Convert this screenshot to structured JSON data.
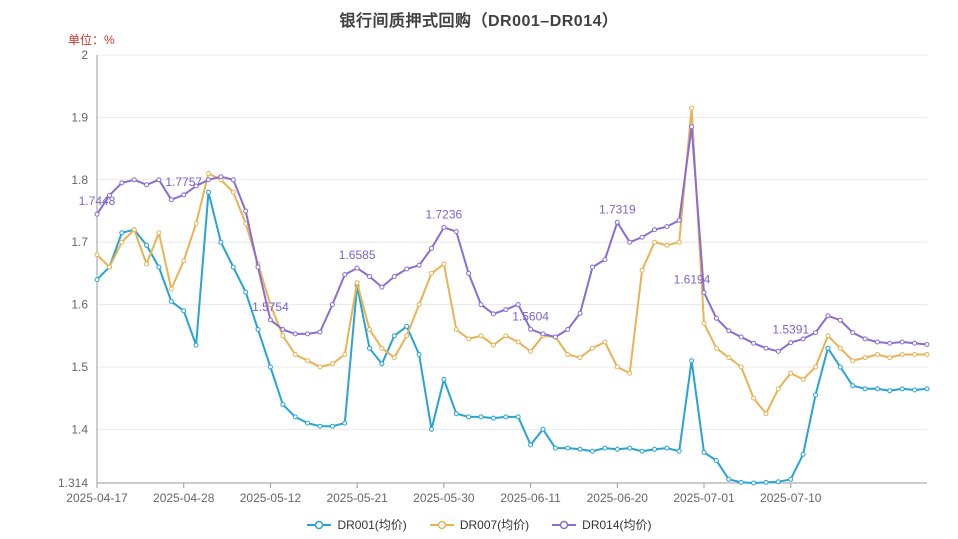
{
  "title": "银行间质押式回购（DR001–DR014）",
  "unit_label": "单位：%",
  "colors": {
    "grid": "#e8e8e8",
    "axis": "#999999",
    "tick_text": "#666666",
    "title_text": "#404040",
    "unit_text": "#c5372e",
    "legend_text": "#333333",
    "background": "#ffffff"
  },
  "chart_data": {
    "type": "line",
    "title": "银行间质押式回购（DR001–DR014）",
    "ylabel": "单位：%",
    "ylim": [
      1.314,
      2
    ],
    "grid": true,
    "legend_position": "bottom",
    "x": [
      "2025-04-17",
      "2025-04-18",
      "2025-04-21",
      "2025-04-22",
      "2025-04-23",
      "2025-04-24",
      "2025-04-25",
      "2025-04-28",
      "2025-04-29",
      "2025-04-30",
      "2025-05-06",
      "2025-05-07",
      "2025-05-08",
      "2025-05-09",
      "2025-05-12",
      "2025-05-13",
      "2025-05-14",
      "2025-05-15",
      "2025-05-16",
      "2025-05-19",
      "2025-05-20",
      "2025-05-21",
      "2025-05-22",
      "2025-05-23",
      "2025-05-26",
      "2025-05-27",
      "2025-05-28",
      "2025-05-29",
      "2025-05-30",
      "2025-06-03",
      "2025-06-04",
      "2025-06-05",
      "2025-06-06",
      "2025-06-09",
      "2025-06-10",
      "2025-06-11",
      "2025-06-12",
      "2025-06-13",
      "2025-06-16",
      "2025-06-17",
      "2025-06-18",
      "2025-06-19",
      "2025-06-20",
      "2025-06-23",
      "2025-06-24",
      "2025-06-25",
      "2025-06-26",
      "2025-06-27",
      "2025-06-30",
      "2025-07-01",
      "2025-07-02",
      "2025-07-03",
      "2025-07-04",
      "2025-07-07",
      "2025-07-08",
      "2025-07-09",
      "2025-07-10",
      "2025-07-11",
      "2025-07-14",
      "2025-07-15",
      "2025-07-16",
      "2025-07-17",
      "2025-07-18",
      "2025-07-21",
      "2025-07-22",
      "2025-07-23",
      "2025-07-24",
      "2025-07-25"
    ],
    "x_ticks": [
      {
        "i": 0,
        "label": "2025-04-17"
      },
      {
        "i": 7,
        "label": "2025-04-28"
      },
      {
        "i": 14,
        "label": "2025-05-12"
      },
      {
        "i": 21,
        "label": "2025-05-21"
      },
      {
        "i": 28,
        "label": "2025-05-30"
      },
      {
        "i": 35,
        "label": "2025-06-11"
      },
      {
        "i": 42,
        "label": "2025-06-20"
      },
      {
        "i": 49,
        "label": "2025-07-01"
      },
      {
        "i": 56,
        "label": "2025-07-10"
      }
    ],
    "y_ticks": [
      {
        "v": 2,
        "label": "2"
      },
      {
        "v": 1.9,
        "label": "1.9"
      },
      {
        "v": 1.8,
        "label": "1.8"
      },
      {
        "v": 1.7,
        "label": "1.7"
      },
      {
        "v": 1.6,
        "label": "1.6"
      },
      {
        "v": 1.5,
        "label": "1.5"
      },
      {
        "v": 1.4,
        "label": "1.4"
      },
      {
        "v": 1.314,
        "label": "1.314"
      }
    ],
    "series": [
      {
        "name": "DR001(均价)",
        "color": "#27a3d6",
        "values": [
          1.64,
          1.66,
          1.715,
          1.72,
          1.695,
          1.66,
          1.605,
          1.59,
          1.535,
          1.78,
          1.7,
          1.66,
          1.62,
          1.56,
          1.5,
          1.44,
          1.42,
          1.41,
          1.405,
          1.405,
          1.41,
          1.63,
          1.53,
          1.505,
          1.55,
          1.565,
          1.52,
          1.4,
          1.48,
          1.425,
          1.42,
          1.42,
          1.418,
          1.42,
          1.42,
          1.375,
          1.4,
          1.37,
          1.37,
          1.368,
          1.365,
          1.37,
          1.368,
          1.37,
          1.365,
          1.368,
          1.37,
          1.365,
          1.51,
          1.363,
          1.35,
          1.32,
          1.315,
          1.314,
          1.315,
          1.316,
          1.32,
          1.36,
          1.455,
          1.53,
          1.5,
          1.47,
          1.465,
          1.465,
          1.462,
          1.465,
          1.463,
          1.465
        ]
      },
      {
        "name": "DR007(均价)",
        "color": "#e7b354",
        "values": [
          1.68,
          1.66,
          1.7,
          1.72,
          1.665,
          1.715,
          1.625,
          1.67,
          1.73,
          1.81,
          1.8,
          1.78,
          1.73,
          1.665,
          1.6,
          1.55,
          1.52,
          1.51,
          1.5,
          1.505,
          1.52,
          1.635,
          1.56,
          1.53,
          1.515,
          1.55,
          1.6,
          1.65,
          1.665,
          1.56,
          1.545,
          1.55,
          1.535,
          1.55,
          1.54,
          1.525,
          1.55,
          1.548,
          1.52,
          1.515,
          1.53,
          1.54,
          1.5,
          1.49,
          1.655,
          1.7,
          1.695,
          1.7,
          1.915,
          1.57,
          1.53,
          1.515,
          1.5,
          1.45,
          1.425,
          1.465,
          1.49,
          1.48,
          1.5,
          1.55,
          1.53,
          1.51,
          1.515,
          1.52,
          1.515,
          1.52,
          1.52,
          1.52
        ]
      },
      {
        "name": "DR014(均价)",
        "color": "#8a6dd2",
        "values": [
          1.7448,
          1.775,
          1.795,
          1.8,
          1.792,
          1.8,
          1.768,
          1.7757,
          1.79,
          1.8,
          1.805,
          1.8,
          1.75,
          1.66,
          1.5754,
          1.56,
          1.553,
          1.553,
          1.556,
          1.6,
          1.648,
          1.6585,
          1.645,
          1.628,
          1.645,
          1.657,
          1.663,
          1.69,
          1.7236,
          1.717,
          1.65,
          1.6,
          1.585,
          1.592,
          1.6,
          1.5604,
          1.553,
          1.548,
          1.56,
          1.586,
          1.66,
          1.672,
          1.7319,
          1.7,
          1.708,
          1.72,
          1.725,
          1.735,
          1.885,
          1.6194,
          1.578,
          1.558,
          1.548,
          1.538,
          1.53,
          1.525,
          1.5391,
          1.545,
          1.555,
          1.582,
          1.575,
          1.555,
          1.545,
          1.54,
          1.538,
          1.54,
          1.538,
          1.536
        ]
      }
    ],
    "annotations": {
      "series": "DR014(均价)",
      "color": "#7d63ce",
      "points": [
        {
          "i": 0,
          "label": "1.7448"
        },
        {
          "i": 7,
          "label": "1.7757"
        },
        {
          "i": 14,
          "label": "1.5754"
        },
        {
          "i": 21,
          "label": "1.6585"
        },
        {
          "i": 28,
          "label": "1.7236"
        },
        {
          "i": 35,
          "label": "1.5604"
        },
        {
          "i": 42,
          "label": "1.7319"
        },
        {
          "i": 49,
          "label": "1.6194",
          "dx": -12
        },
        {
          "i": 56,
          "label": "1.5391"
        }
      ]
    }
  }
}
